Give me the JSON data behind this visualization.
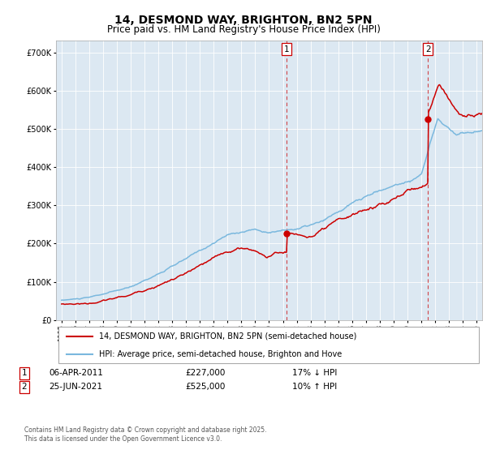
{
  "title": "14, DESMOND WAY, BRIGHTON, BN2 5PN",
  "subtitle": "Price paid vs. HM Land Registry's House Price Index (HPI)",
  "ylim": [
    0,
    730000
  ],
  "yticks": [
    0,
    100000,
    200000,
    300000,
    400000,
    500000,
    600000,
    700000
  ],
  "sale1_price": 227000,
  "sale1_x": 2011.27,
  "sale2_price": 525000,
  "sale2_x": 2021.48,
  "hpi_color": "#7ab8de",
  "sale_color": "#cc0000",
  "plot_bg": "#dce8f2",
  "legend_label_red": "14, DESMOND WAY, BRIGHTON, BN2 5PN (semi-detached house)",
  "legend_label_blue": "HPI: Average price, semi-detached house, Brighton and Hove",
  "footer": "Contains HM Land Registry data © Crown copyright and database right 2025.\nThis data is licensed under the Open Government Licence v3.0.",
  "title_fontsize": 10,
  "subtitle_fontsize": 8.5
}
